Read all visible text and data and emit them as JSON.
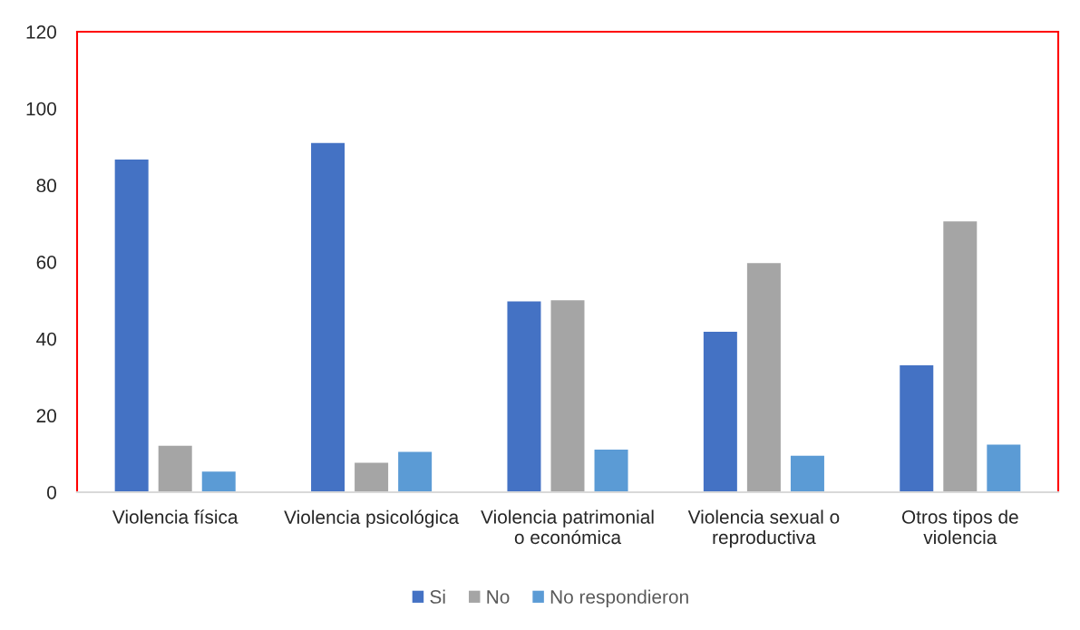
{
  "chart_data": {
    "type": "bar",
    "categories": [
      "Violencia física",
      "Violencia psicológica",
      "Violencia patrimonial o económica",
      "Violencia sexual o reproductiva",
      "Otros tipos de violencia"
    ],
    "series": [
      {
        "name": "Si",
        "color": "#4472c4",
        "values": [
          86.7,
          91.0,
          49.7,
          41.8,
          33.1
        ]
      },
      {
        "name": "No",
        "color": "#a5a5a5",
        "values": [
          12.1,
          7.7,
          50.0,
          59.7,
          70.6
        ]
      },
      {
        "name": "No respondieron",
        "color": "#5b9bd5",
        "values": [
          5.4,
          10.5,
          11.1,
          9.5,
          12.4
        ]
      }
    ],
    "ylim": [
      0,
      120
    ],
    "yticks": [
      0,
      20,
      40,
      60,
      80,
      100,
      120
    ],
    "grid": false,
    "legend": "bottom"
  }
}
